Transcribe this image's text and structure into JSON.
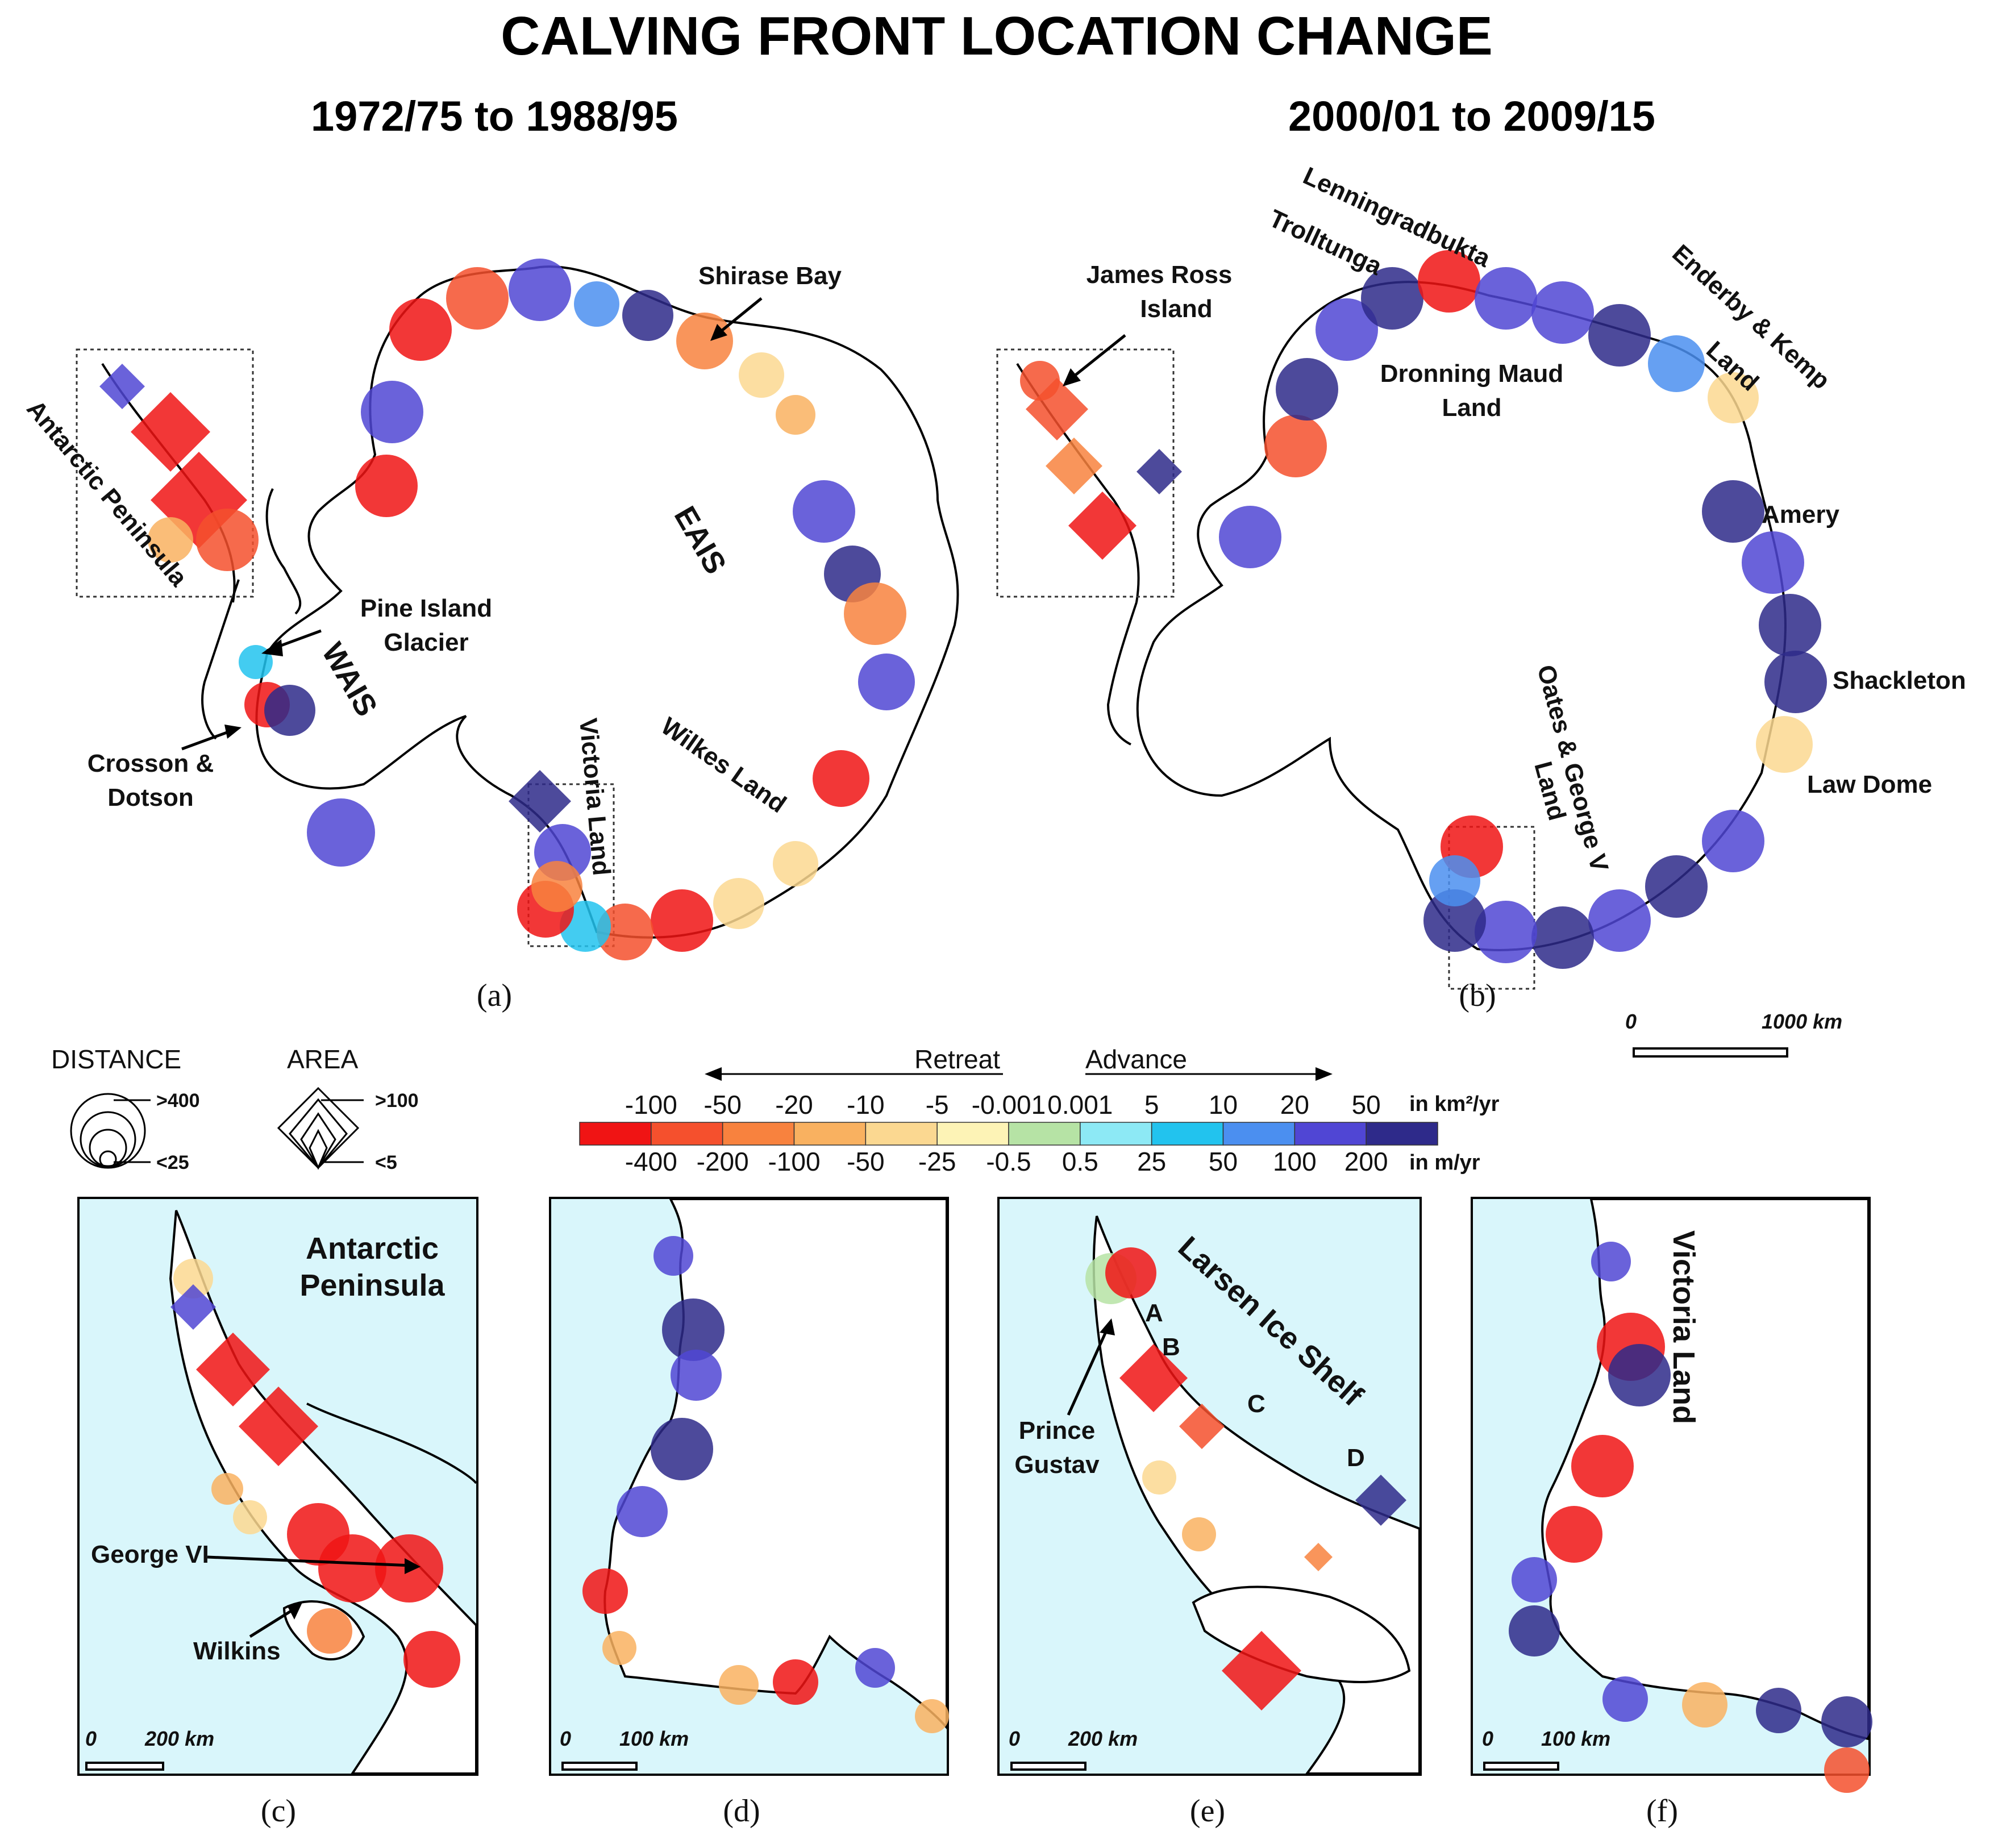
{
  "title": "CALVING FRONT LOCATION CHANGE",
  "period_a": "1972/75 to 1988/95",
  "period_b": "2000/01 to 2009/15",
  "panels": {
    "a": {
      "caption": "(a)",
      "labels": {
        "antarctic_peninsula": "Antarctic Peninsula",
        "pine_island": [
          "Pine Island",
          "Glacier"
        ],
        "crosson": [
          "Crosson &",
          "Dotson"
        ],
        "wais": "WAIS",
        "eais": "EAIS",
        "shirase": "Shirase Bay",
        "victoria": "Victoria Land",
        "wilkes": "Wilkes Land"
      }
    },
    "b": {
      "caption": "(b)",
      "labels": {
        "james_ross": [
          "James Ross",
          "Island"
        ],
        "trolltunga": "Trolltunga",
        "lenningradbukta": "Lenningradbukta",
        "enderby": [
          "Enderby & Kemp",
          "Land"
        ],
        "dronning": [
          "Dronning Maud",
          "Land"
        ],
        "amery": "Amery",
        "shackleton": "Shackleton",
        "law_dome": "Law Dome",
        "oates": [
          "Oates & George V",
          "Land"
        ]
      },
      "scale_zero": "0",
      "scale_label": "1000 km"
    },
    "c": {
      "caption": "(c)",
      "title": [
        "Antarctic",
        "Peninsula"
      ],
      "george": "George VI",
      "wilkins": "Wilkins",
      "scale_zero": "0",
      "scale_label": "200 km"
    },
    "d": {
      "caption": "(d)",
      "scale_zero": "0",
      "scale_label": "100 km"
    },
    "e": {
      "caption": "(e)",
      "title": "Larsen Ice Shelf",
      "prince": [
        "Prince",
        "Gustav"
      ],
      "letters": [
        "A",
        "B",
        "C",
        "D"
      ],
      "scale_zero": "0",
      "scale_label": "200 km"
    },
    "f": {
      "caption": "(f)",
      "title": "Victoria Land",
      "scale_zero": "0",
      "scale_label": "100 km"
    }
  },
  "legend": {
    "distance_title": "DISTANCE",
    "distance_max": ">400",
    "distance_min": "<25",
    "area_title": "AREA",
    "area_max": ">100",
    "area_min": "<5",
    "retreat": "Retreat",
    "advance": "Advance",
    "km_unit": "in km²/yr",
    "m_unit": "in m/yr",
    "km_ticks": [
      "-100",
      "-50",
      "-20",
      "-10",
      "-5",
      "-0.001",
      "0.001",
      "5",
      "10",
      "20",
      "50"
    ],
    "m_ticks": [
      "-400",
      "-200",
      "-100",
      "-50",
      "-25",
      "-0.5",
      "0.5",
      "25",
      "50",
      "100",
      "200"
    ],
    "colors": [
      "#f01414",
      "#f5502d",
      "#f8823e",
      "#f9b160",
      "#fbd891",
      "#fdf3b6",
      "#b6e3a5",
      "#8de9f5",
      "#22c3ee",
      "#4b8ff0",
      "#5046d4",
      "#2e2a8a"
    ]
  },
  "colors": {
    "ocean": "#d9f6fb",
    "land": "#ffffff",
    "outline": "#000000"
  }
}
